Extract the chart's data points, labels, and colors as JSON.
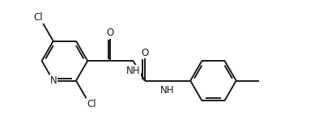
{
  "bg_color": "#ffffff",
  "line_color": "#1a1a1a",
  "line_width": 1.4,
  "font_size": 8.5,
  "fig_width": 3.99,
  "fig_height": 1.53,
  "dpi": 100,
  "xlim": [
    0,
    10
  ],
  "ylim": [
    0,
    3.83
  ]
}
